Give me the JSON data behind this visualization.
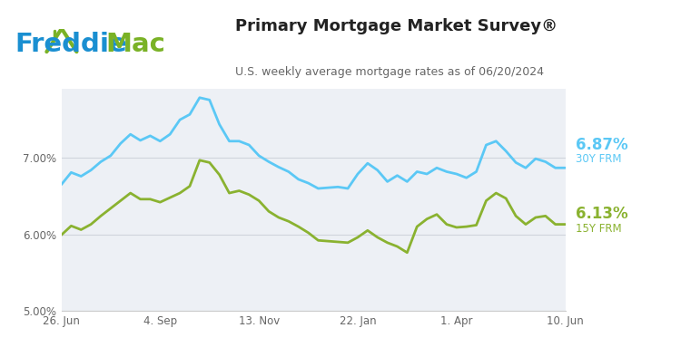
{
  "title": "Primary Mortgage Market Survey®",
  "subtitle": "U.S. weekly average mortgage rates as of 06/20/2024",
  "header_bg": "#ffffff",
  "plot_bg_color": "#edf0f5",
  "line_30y_color": "#5bc8f5",
  "line_15y_color": "#8ab230",
  "label_30y_value": "6.87%",
  "label_30y_name": "30Y FRM",
  "label_15y_value": "6.13%",
  "label_15y_name": "15Y FRM",
  "ylim": [
    5.0,
    7.9
  ],
  "yticks": [
    5.0,
    6.0,
    7.0
  ],
  "ytick_labels": [
    "5.00%",
    "6.00%",
    "7.00%"
  ],
  "xtick_labels": [
    "26. Jun",
    "4. Sep",
    "13. Nov",
    "22. Jan",
    "1. Apr",
    "10. Jun"
  ],
  "xtick_positions": [
    0,
    10,
    20,
    30,
    40,
    51
  ],
  "x_30y": [
    0,
    1,
    2,
    3,
    4,
    5,
    6,
    7,
    8,
    9,
    10,
    11,
    12,
    13,
    14,
    15,
    16,
    17,
    18,
    19,
    20,
    21,
    22,
    23,
    24,
    25,
    26,
    27,
    28,
    29,
    30,
    31,
    32,
    33,
    34,
    35,
    36,
    37,
    38,
    39,
    40,
    41,
    42,
    43,
    44,
    45,
    46,
    47,
    48,
    49,
    50,
    51
  ],
  "y_30y": [
    6.65,
    6.81,
    6.76,
    6.84,
    6.95,
    7.03,
    7.19,
    7.31,
    7.23,
    7.29,
    7.22,
    7.31,
    7.5,
    7.57,
    7.79,
    7.76,
    7.44,
    7.22,
    7.22,
    7.17,
    7.03,
    6.95,
    6.88,
    6.82,
    6.72,
    6.67,
    6.6,
    6.61,
    6.62,
    6.6,
    6.79,
    6.93,
    6.84,
    6.69,
    6.77,
    6.69,
    6.82,
    6.79,
    6.87,
    6.82,
    6.79,
    6.74,
    6.82,
    7.17,
    7.22,
    7.09,
    6.94,
    6.87,
    6.99,
    6.95,
    6.87,
    6.87
  ],
  "x_15y": [
    0,
    1,
    2,
    3,
    4,
    5,
    6,
    7,
    8,
    9,
    10,
    11,
    12,
    13,
    14,
    15,
    16,
    17,
    18,
    19,
    20,
    21,
    22,
    23,
    24,
    25,
    26,
    27,
    28,
    29,
    30,
    31,
    32,
    33,
    34,
    35,
    36,
    37,
    38,
    39,
    40,
    41,
    42,
    43,
    44,
    45,
    46,
    47,
    48,
    49,
    50,
    51
  ],
  "y_15y": [
    5.99,
    6.11,
    6.06,
    6.13,
    6.24,
    6.34,
    6.44,
    6.54,
    6.46,
    6.46,
    6.42,
    6.48,
    6.54,
    6.63,
    6.97,
    6.94,
    6.78,
    6.54,
    6.57,
    6.52,
    6.44,
    6.3,
    6.22,
    6.17,
    6.1,
    6.02,
    5.92,
    5.91,
    5.9,
    5.89,
    5.96,
    6.05,
    5.96,
    5.89,
    5.84,
    5.76,
    6.1,
    6.2,
    6.26,
    6.13,
    6.09,
    6.1,
    6.12,
    6.44,
    6.54,
    6.47,
    6.24,
    6.13,
    6.22,
    6.24,
    6.13,
    6.13
  ],
  "freddie_blue": "#1a8fd1",
  "freddie_green": "#7ab226",
  "title_color": "#222222",
  "subtitle_color": "#666666",
  "tick_color": "#666666",
  "grid_color": "#d0d4dc",
  "bottom_border_color": "#cccccc"
}
